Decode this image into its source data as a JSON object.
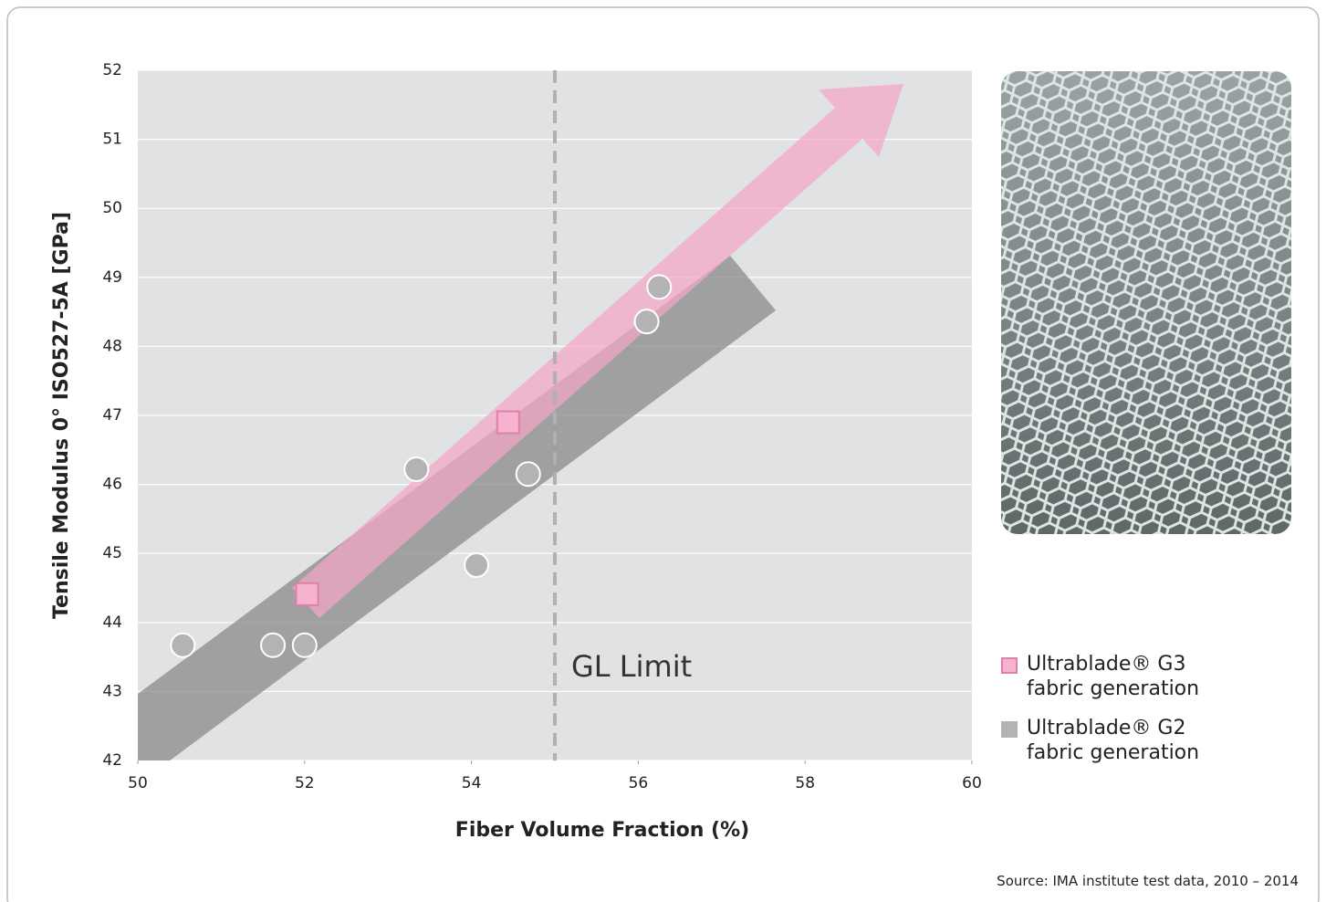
{
  "chart_data": {
    "type": "scatter",
    "x_label": "Fiber Volume Fraction (%)",
    "y_label": "Tensile Modulus 0° ISO527-5A [GPa]",
    "xlim": [
      50,
      60
    ],
    "ylim": [
      42,
      52
    ],
    "xticks": [
      50,
      52,
      54,
      56,
      58,
      60
    ],
    "yticks": [
      42,
      43,
      44,
      45,
      46,
      47,
      48,
      49,
      50,
      51,
      52
    ],
    "grid": true,
    "series": [
      {
        "name": "Ultrablade® G3 fabric generation",
        "color": "#f6b3cf",
        "marker": "square",
        "x": [
          52.03,
          54.44
        ],
        "y": [
          44.41,
          46.9
        ]
      },
      {
        "name": "Ultrablade® G2 fabric generation",
        "color": "#b3b3b3",
        "marker": "circle",
        "x": [
          50.54,
          51.62,
          52.0,
          53.34,
          54.06,
          54.68,
          56.1,
          56.25
        ],
        "y": [
          43.67,
          43.67,
          43.67,
          46.22,
          44.83,
          46.15,
          48.36,
          48.86
        ]
      }
    ],
    "annotations": [
      {
        "text": "GL Limit",
        "x": 55
      }
    ],
    "source": "Source: IMA institute test data, 2010 – 2014"
  }
}
